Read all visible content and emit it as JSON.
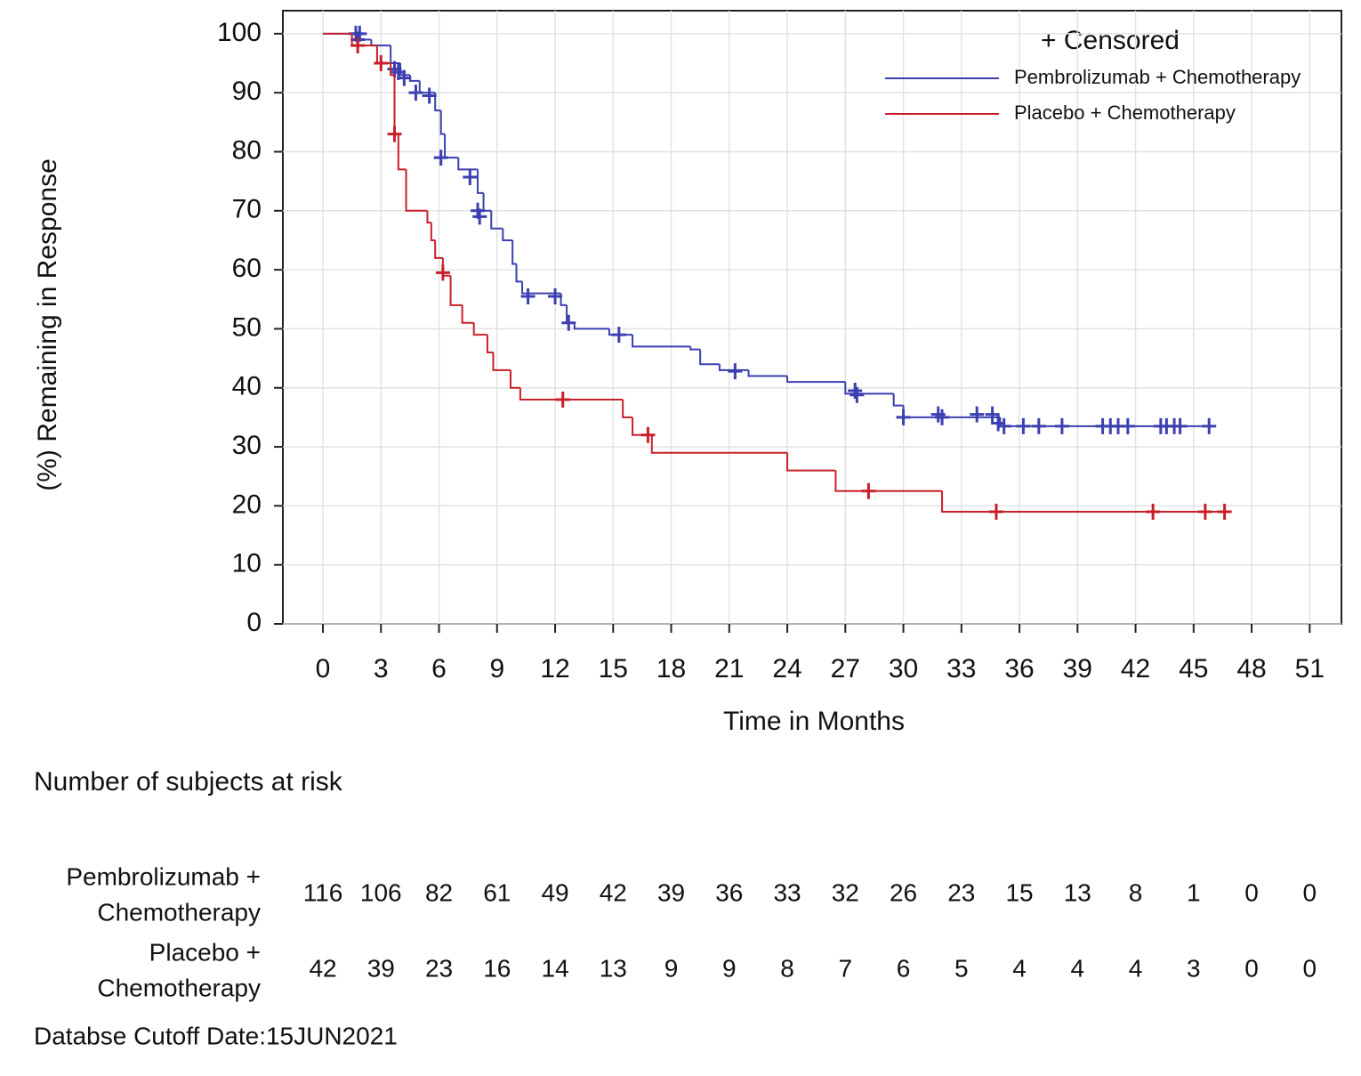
{
  "chart_data": {
    "type": "km-step",
    "y_label": "(%) Remaining in Response",
    "x_label": "Time in Months",
    "xlim": [
      -2.07,
      52.64
    ],
    "ylim": [
      0,
      103.9
    ],
    "xticks": [
      0,
      3,
      6,
      9,
      12,
      15,
      18,
      21,
      24,
      27,
      30,
      33,
      36,
      39,
      42,
      45,
      48,
      51
    ],
    "yticks": [
      0,
      10,
      20,
      30,
      40,
      50,
      60,
      70,
      80,
      90,
      100
    ],
    "grid": true,
    "legend": "upper right",
    "censor_legend": "+ Censored",
    "series": [
      {
        "name": "Pembrolizumab + Chemotherapy",
        "color": "#3b3fb0",
        "x": [
          0,
          1.8,
          2.5,
          3.5,
          4,
          4.5,
          5,
          5.8,
          6.1,
          6.3,
          7,
          8,
          8.3,
          8.7,
          9.3,
          9.8,
          10,
          10.3,
          12.3,
          12.6,
          13,
          14.8,
          16,
          19,
          19.5,
          20.5,
          22,
          24,
          27,
          29.5,
          30,
          35,
          46
        ],
        "values": [
          100,
          99,
          98,
          95,
          93,
          92,
          90,
          87,
          83,
          79,
          77,
          73,
          70,
          67,
          65,
          61,
          58,
          56,
          54,
          51,
          50,
          49,
          47,
          46.5,
          44,
          43,
          42,
          41,
          39,
          37,
          35,
          33.5,
          33.5
        ],
        "censored_x": [
          1.7,
          1.9,
          1.8,
          3.7,
          3.9,
          4.2,
          4.8,
          5.5,
          6.1,
          7.6,
          8,
          8.1,
          10.6,
          12,
          12.7,
          15.3,
          21.3,
          27.5,
          27.6,
          30,
          31.8,
          32,
          33.8,
          34.6,
          34.9,
          35.2,
          36.2,
          37,
          38.2,
          40.3,
          40.7,
          41.1,
          41.6,
          43.3,
          43.6,
          44,
          44.3,
          45.8
        ],
        "censored_y": [
          100,
          100,
          99,
          94,
          93.5,
          92.5,
          90,
          89.5,
          79,
          75.7,
          70,
          69,
          55.5,
          55.5,
          51,
          49,
          42.8,
          39.5,
          38.8,
          35,
          35.5,
          35,
          35.5,
          35.5,
          34,
          33.5,
          33.5,
          33.5,
          33.5,
          33.5,
          33.5,
          33.5,
          33.5,
          33.5,
          33.5,
          33.5,
          33.5,
          33.5
        ]
      },
      {
        "name": "Placebo + Chemotherapy",
        "color": "#c8202a",
        "x": [
          0,
          1.5,
          2.8,
          3.5,
          3.7,
          3.9,
          4.3,
          5.4,
          5.6,
          5.8,
          6.2,
          6.6,
          7.2,
          7.8,
          8.5,
          8.8,
          9.7,
          10.2,
          15.5,
          16,
          17,
          24,
          26.5,
          32,
          46.8
        ],
        "values": [
          100,
          98,
          95,
          93,
          83,
          77,
          70,
          68,
          65,
          62,
          59,
          54,
          51,
          49,
          46,
          43,
          40,
          38,
          35,
          32,
          29,
          26,
          22.5,
          19,
          19
        ],
        "censored_x": [
          1.8,
          3,
          3.7,
          6.2,
          12.4,
          16.8,
          28.2,
          34.8,
          42.9,
          45.6,
          46.6
        ],
        "censored_y": [
          98,
          95,
          83,
          59.5,
          38,
          32,
          22.5,
          19,
          19,
          19,
          19
        ]
      }
    ],
    "risk_table": {
      "title": "Number of subjects at risk",
      "rows": [
        {
          "label": [
            "Pembrolizumab +",
            "Chemotherapy"
          ],
          "values": [
            116,
            106,
            82,
            61,
            49,
            42,
            39,
            36,
            33,
            32,
            26,
            23,
            15,
            13,
            8,
            1,
            0,
            0
          ]
        },
        {
          "label": [
            "Placebo +",
            "Chemotherapy"
          ],
          "values": [
            42,
            39,
            23,
            16,
            14,
            13,
            9,
            9,
            8,
            7,
            6,
            5,
            4,
            4,
            4,
            3,
            0,
            0
          ]
        }
      ]
    },
    "footnote": "Databse Cutoff Date:15JUN2021"
  }
}
